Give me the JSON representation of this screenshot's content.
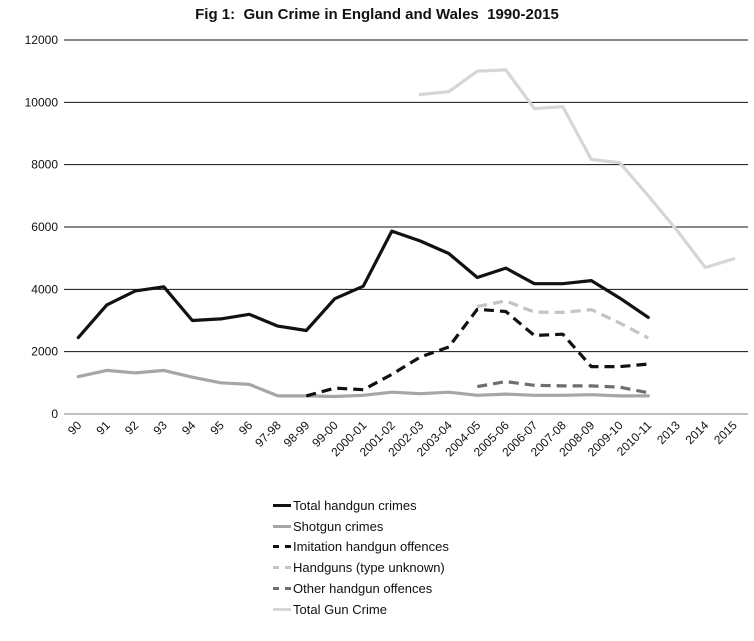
{
  "chart_data": {
    "type": "line",
    "title": "Fig 1:  Gun Crime in England and Wales  1990-2015",
    "xlabel": "",
    "ylabel": "",
    "ylim": [
      0,
      12000
    ],
    "yticks": [
      0,
      2000,
      4000,
      6000,
      8000,
      10000,
      12000
    ],
    "grid": "horizontal",
    "legend_position": "bottom",
    "categories": [
      "90",
      "91",
      "92",
      "93",
      "94",
      "95",
      "96",
      "97-98",
      "98-99",
      "99-00",
      "2000-01",
      "2001-02",
      "2002-03",
      "2003-04",
      "2004-05",
      "2005-06",
      "2006-07",
      "2007-08",
      "2008-09",
      "2009-10",
      "2010-11",
      "2013",
      "2014",
      "2015"
    ],
    "series": [
      {
        "name": "Total handgun crimes",
        "color": "#111111",
        "dashed": false,
        "values": [
          2450,
          3500,
          3950,
          4080,
          3000,
          3050,
          3200,
          2820,
          2680,
          3700,
          4100,
          5870,
          5550,
          5150,
          4380,
          4680,
          4180,
          4180,
          4280,
          3720,
          3100,
          null,
          null,
          null
        ]
      },
      {
        "name": "Shotgun crimes",
        "color": "#a6a6a6",
        "dashed": false,
        "values": [
          1200,
          1400,
          1320,
          1400,
          1180,
          1000,
          950,
          580,
          580,
          560,
          600,
          700,
          650,
          700,
          600,
          640,
          600,
          600,
          620,
          580,
          580,
          null,
          null,
          null
        ]
      },
      {
        "name": "Imitation handgun offences",
        "color": "#111111",
        "dashed": true,
        "values": [
          null,
          null,
          null,
          null,
          null,
          null,
          null,
          null,
          580,
          830,
          780,
          1270,
          1830,
          2150,
          3360,
          3290,
          2520,
          2560,
          1520,
          1520,
          1600,
          null,
          null,
          null
        ]
      },
      {
        "name": "Handguns (type unknown)",
        "color": "#c4c4c4",
        "dashed": true,
        "values": [
          null,
          null,
          null,
          null,
          null,
          null,
          null,
          null,
          null,
          null,
          null,
          null,
          null,
          null,
          3450,
          3630,
          3270,
          3260,
          3350,
          2920,
          2440,
          null,
          null,
          null
        ]
      },
      {
        "name": "Other handgun offences",
        "color": "#6e6e6e",
        "dashed": true,
        "values": [
          null,
          null,
          null,
          null,
          null,
          null,
          null,
          null,
          null,
          null,
          null,
          null,
          null,
          null,
          880,
          1040,
          920,
          900,
          900,
          860,
          680,
          null,
          null,
          null
        ]
      },
      {
        "name": "Total Gun Crime",
        "color": "#d6d6d6",
        "dashed": false,
        "values": [
          null,
          null,
          null,
          null,
          null,
          null,
          null,
          null,
          null,
          null,
          null,
          null,
          10250,
          10340,
          11000,
          11040,
          9800,
          9860,
          8170,
          8060,
          7000,
          5900,
          4700,
          4980
        ]
      }
    ]
  }
}
